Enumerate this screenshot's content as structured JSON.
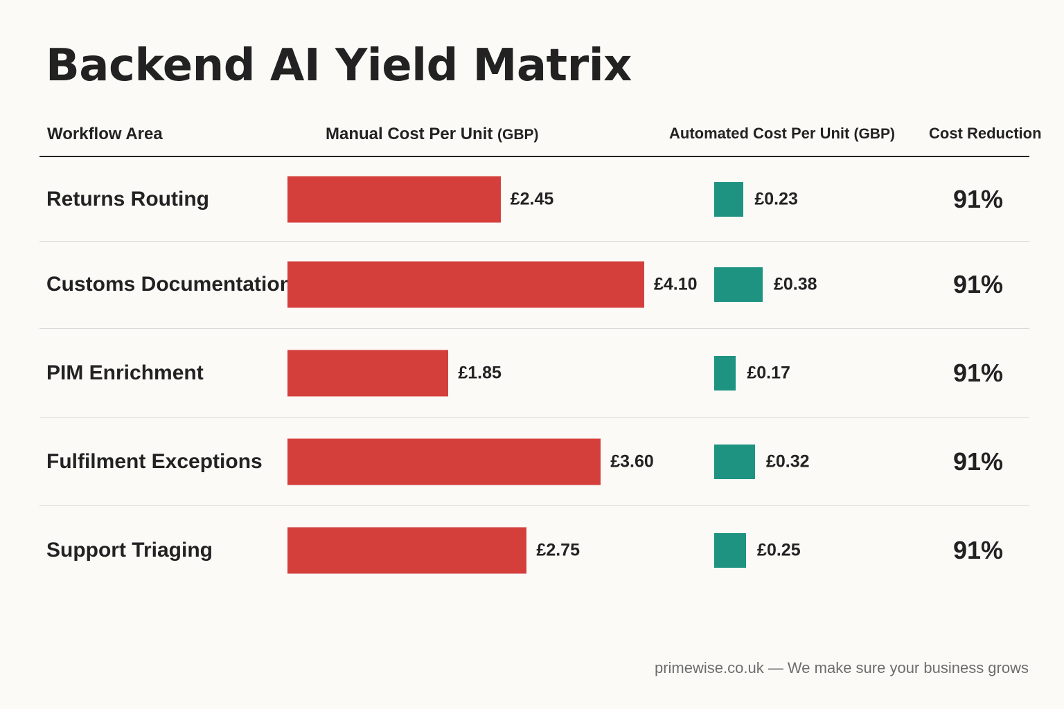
{
  "title": "Backend AI Yield Matrix",
  "headers": {
    "area": "Workflow Area",
    "manual": "Manual Cost Per Unit",
    "manual_unit": "(GBP)",
    "automated": "Automated Cost Per Unit",
    "automated_unit": "(GBP)",
    "reduction": "Cost Reduction"
  },
  "colors": {
    "manual_bar": "#d43f3c",
    "automated_bar": "#1f9381",
    "background": "#fbfaf7"
  },
  "footer": "primewise.co.uk — We make sure your business grows",
  "chart_data": {
    "type": "bar",
    "title": "Backend AI Yield Matrix",
    "categories": [
      "Returns Routing",
      "Customs Documentation",
      "PIM Enrichment",
      "Fulfilment Exceptions",
      "Support Triaging"
    ],
    "series": [
      {
        "name": "Manual Cost Per Unit (GBP)",
        "values": [
          2.45,
          4.1,
          1.85,
          3.6,
          2.75
        ],
        "labels": [
          "£2.45",
          "£4.10",
          "£1.85",
          "£3.60",
          "£2.75"
        ]
      },
      {
        "name": "Automated Cost Per Unit (GBP)",
        "values": [
          0.23,
          0.38,
          0.17,
          0.32,
          0.25
        ],
        "labels": [
          "£0.23",
          "£0.38",
          "£0.17",
          "£0.32",
          "£0.25"
        ]
      }
    ],
    "cost_reduction": [
      "91%",
      "91%",
      "91%",
      "91%",
      "91%"
    ],
    "grid": false,
    "legend": "none"
  }
}
